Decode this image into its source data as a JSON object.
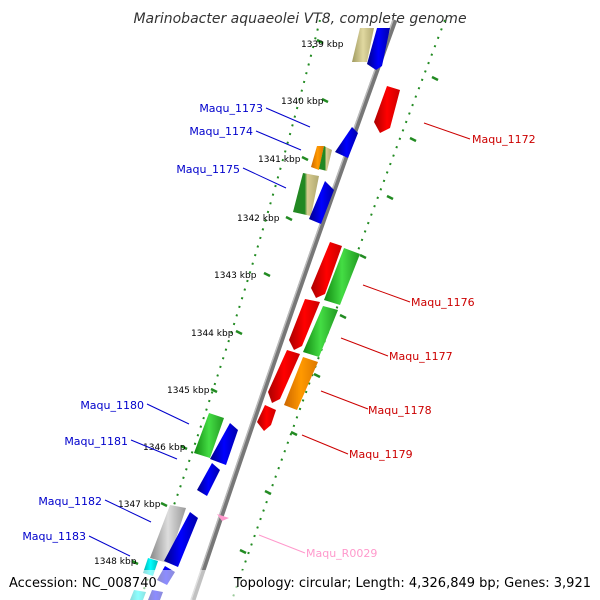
{
  "title": "Marinobacter aquaeolei VT8, complete genome",
  "footer": {
    "accession": "Accession: NC_008740",
    "summary": "Topology: circular; Length: 4,326,849 bp; Genes: 3,921"
  },
  "ticks": [
    "1339 kbp",
    "1340 kbp",
    "1341 kbp",
    "1342 kbp",
    "1343 kbp",
    "1344 kbp",
    "1345 kbp",
    "1346 kbp",
    "1347 kbp",
    "1348 kbp"
  ],
  "labels_left": [
    "Maqu_1173",
    "Maqu_1174",
    "Maqu_1175",
    "Maqu_1180",
    "Maqu_1181",
    "Maqu_1182",
    "Maqu_1183"
  ],
  "labels_right": [
    "Maqu_1172",
    "Maqu_1176",
    "Maqu_1177",
    "Maqu_1178",
    "Maqu_1179"
  ],
  "rna_label": "Maqu_R0029",
  "colors": {
    "forward_label": "#0000cc",
    "reverse_label": "#cc0000",
    "rna_label": "#ff99cc",
    "forward_cds": "#0000ff",
    "reverse_cds": "#ff0000",
    "backbone": "#888888",
    "tick": "#228b22"
  }
}
